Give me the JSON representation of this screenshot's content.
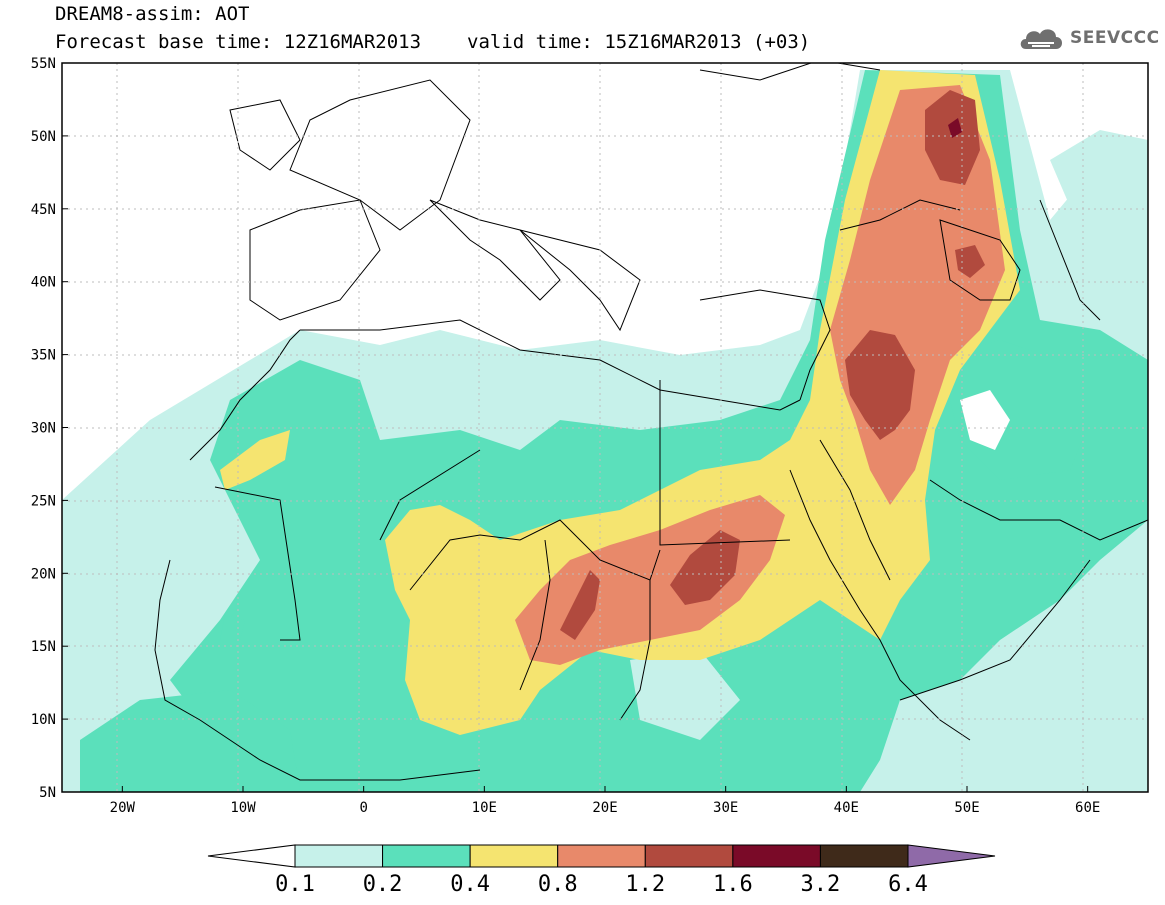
{
  "header": {
    "title": "DREAM8-assim: AOT",
    "base_time": "Forecast base time: 12Z16MAR2013",
    "valid_time": "valid time: 15Z16MAR2013 (+03)"
  },
  "logo": {
    "text": "SEEVCCC",
    "icon": "cloud-icon"
  },
  "map": {
    "lat_labels": [
      "55N",
      "50N",
      "45N",
      "40N",
      "35N",
      "30N",
      "25N",
      "20N",
      "15N",
      "10N",
      "5N"
    ],
    "lat_values": [
      55,
      50,
      45,
      40,
      35,
      30,
      25,
      20,
      15,
      10,
      5
    ],
    "lon_labels": [
      "20W",
      "10W",
      "0",
      "10E",
      "20E",
      "30E",
      "40E",
      "50E",
      "60E"
    ],
    "lon_values": [
      -20,
      -10,
      0,
      10,
      20,
      30,
      40,
      50,
      60
    ],
    "extent": {
      "lon_min": -25,
      "lon_max": 65,
      "lat_min": 5,
      "lat_max": 55
    }
  },
  "colorbar": {
    "labels": [
      "0.1",
      "0.2",
      "0.4",
      "0.8",
      "1.2",
      "1.6",
      "3.2",
      "6.4"
    ],
    "colors": [
      "#ffffff",
      "#c6f1ea",
      "#5be0bb",
      "#f5e470",
      "#e8896a",
      "#b14a3e",
      "#7a0a28",
      "#3f2a1a",
      "#8f6aa8"
    ]
  }
}
